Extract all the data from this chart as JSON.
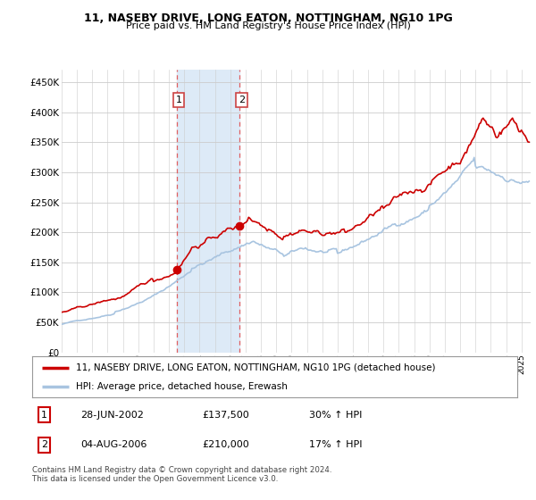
{
  "title": "11, NASEBY DRIVE, LONG EATON, NOTTINGHAM, NG10 1PG",
  "subtitle": "Price paid vs. HM Land Registry's House Price Index (HPI)",
  "ylim": [
    0,
    470000
  ],
  "yticks": [
    0,
    50000,
    100000,
    150000,
    200000,
    250000,
    300000,
    350000,
    400000,
    450000
  ],
  "ytick_labels": [
    "£0",
    "£50K",
    "£100K",
    "£150K",
    "£200K",
    "£250K",
    "£300K",
    "£350K",
    "£400K",
    "£450K"
  ],
  "background_color": "#ffffff",
  "grid_color": "#cccccc",
  "sale1_year": 2002.49,
  "sale1_price": 137500,
  "sale2_year": 2006.59,
  "sale2_price": 210000,
  "shade_color": "#ddeaf7",
  "hpi_color": "#a8c4e0",
  "price_color": "#cc0000",
  "dashed_color": "#e06060",
  "legend_line1": "11, NASEBY DRIVE, LONG EATON, NOTTINGHAM, NG10 1PG (detached house)",
  "legend_line2": "HPI: Average price, detached house, Erewash",
  "table_data": [
    {
      "num": "1",
      "date": "28-JUN-2002",
      "price": "£137,500",
      "change": "30% ↑ HPI"
    },
    {
      "num": "2",
      "date": "04-AUG-2006",
      "price": "£210,000",
      "change": "17% ↑ HPI"
    }
  ],
  "footer": "Contains HM Land Registry data © Crown copyright and database right 2024.\nThis data is licensed under the Open Government Licence v3.0."
}
